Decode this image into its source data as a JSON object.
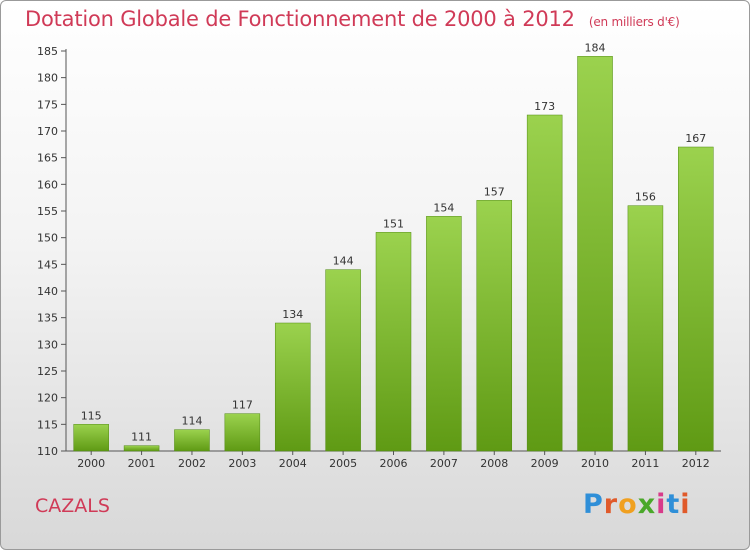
{
  "header": {
    "title": "Dotation Globale de Fonctionnement de 2000 à 2012",
    "unit_note": "(en milliers d'€)"
  },
  "footer": {
    "commune": "CAZALS",
    "brand": "Proxiti"
  },
  "colors": {
    "title": "#d03a57",
    "bar_light": "#9bd24e",
    "bar_dark": "#5f9a14",
    "brand_letters": [
      "#2f8fd8",
      "#e05a2a",
      "#f0a020",
      "#4aa82a",
      "#d83a8a",
      "#2f8fd8",
      "#e05a2a"
    ]
  },
  "chart_data": {
    "type": "bar",
    "categories": [
      "2000",
      "2001",
      "2002",
      "2003",
      "2004",
      "2005",
      "2006",
      "2007",
      "2008",
      "2009",
      "2010",
      "2011",
      "2012"
    ],
    "values": [
      115,
      111,
      114,
      117,
      134,
      144,
      151,
      154,
      157,
      173,
      184,
      156,
      167
    ],
    "data_labels": [
      "115",
      "111",
      "114",
      "117",
      "134",
      "144",
      "151",
      "154",
      "157",
      "173",
      "184",
      "156",
      "167"
    ],
    "ylim": [
      110,
      185
    ],
    "yticks": [
      110,
      115,
      120,
      125,
      130,
      135,
      140,
      145,
      150,
      155,
      160,
      165,
      170,
      175,
      180,
      185
    ],
    "grid": false,
    "legend": "none"
  }
}
